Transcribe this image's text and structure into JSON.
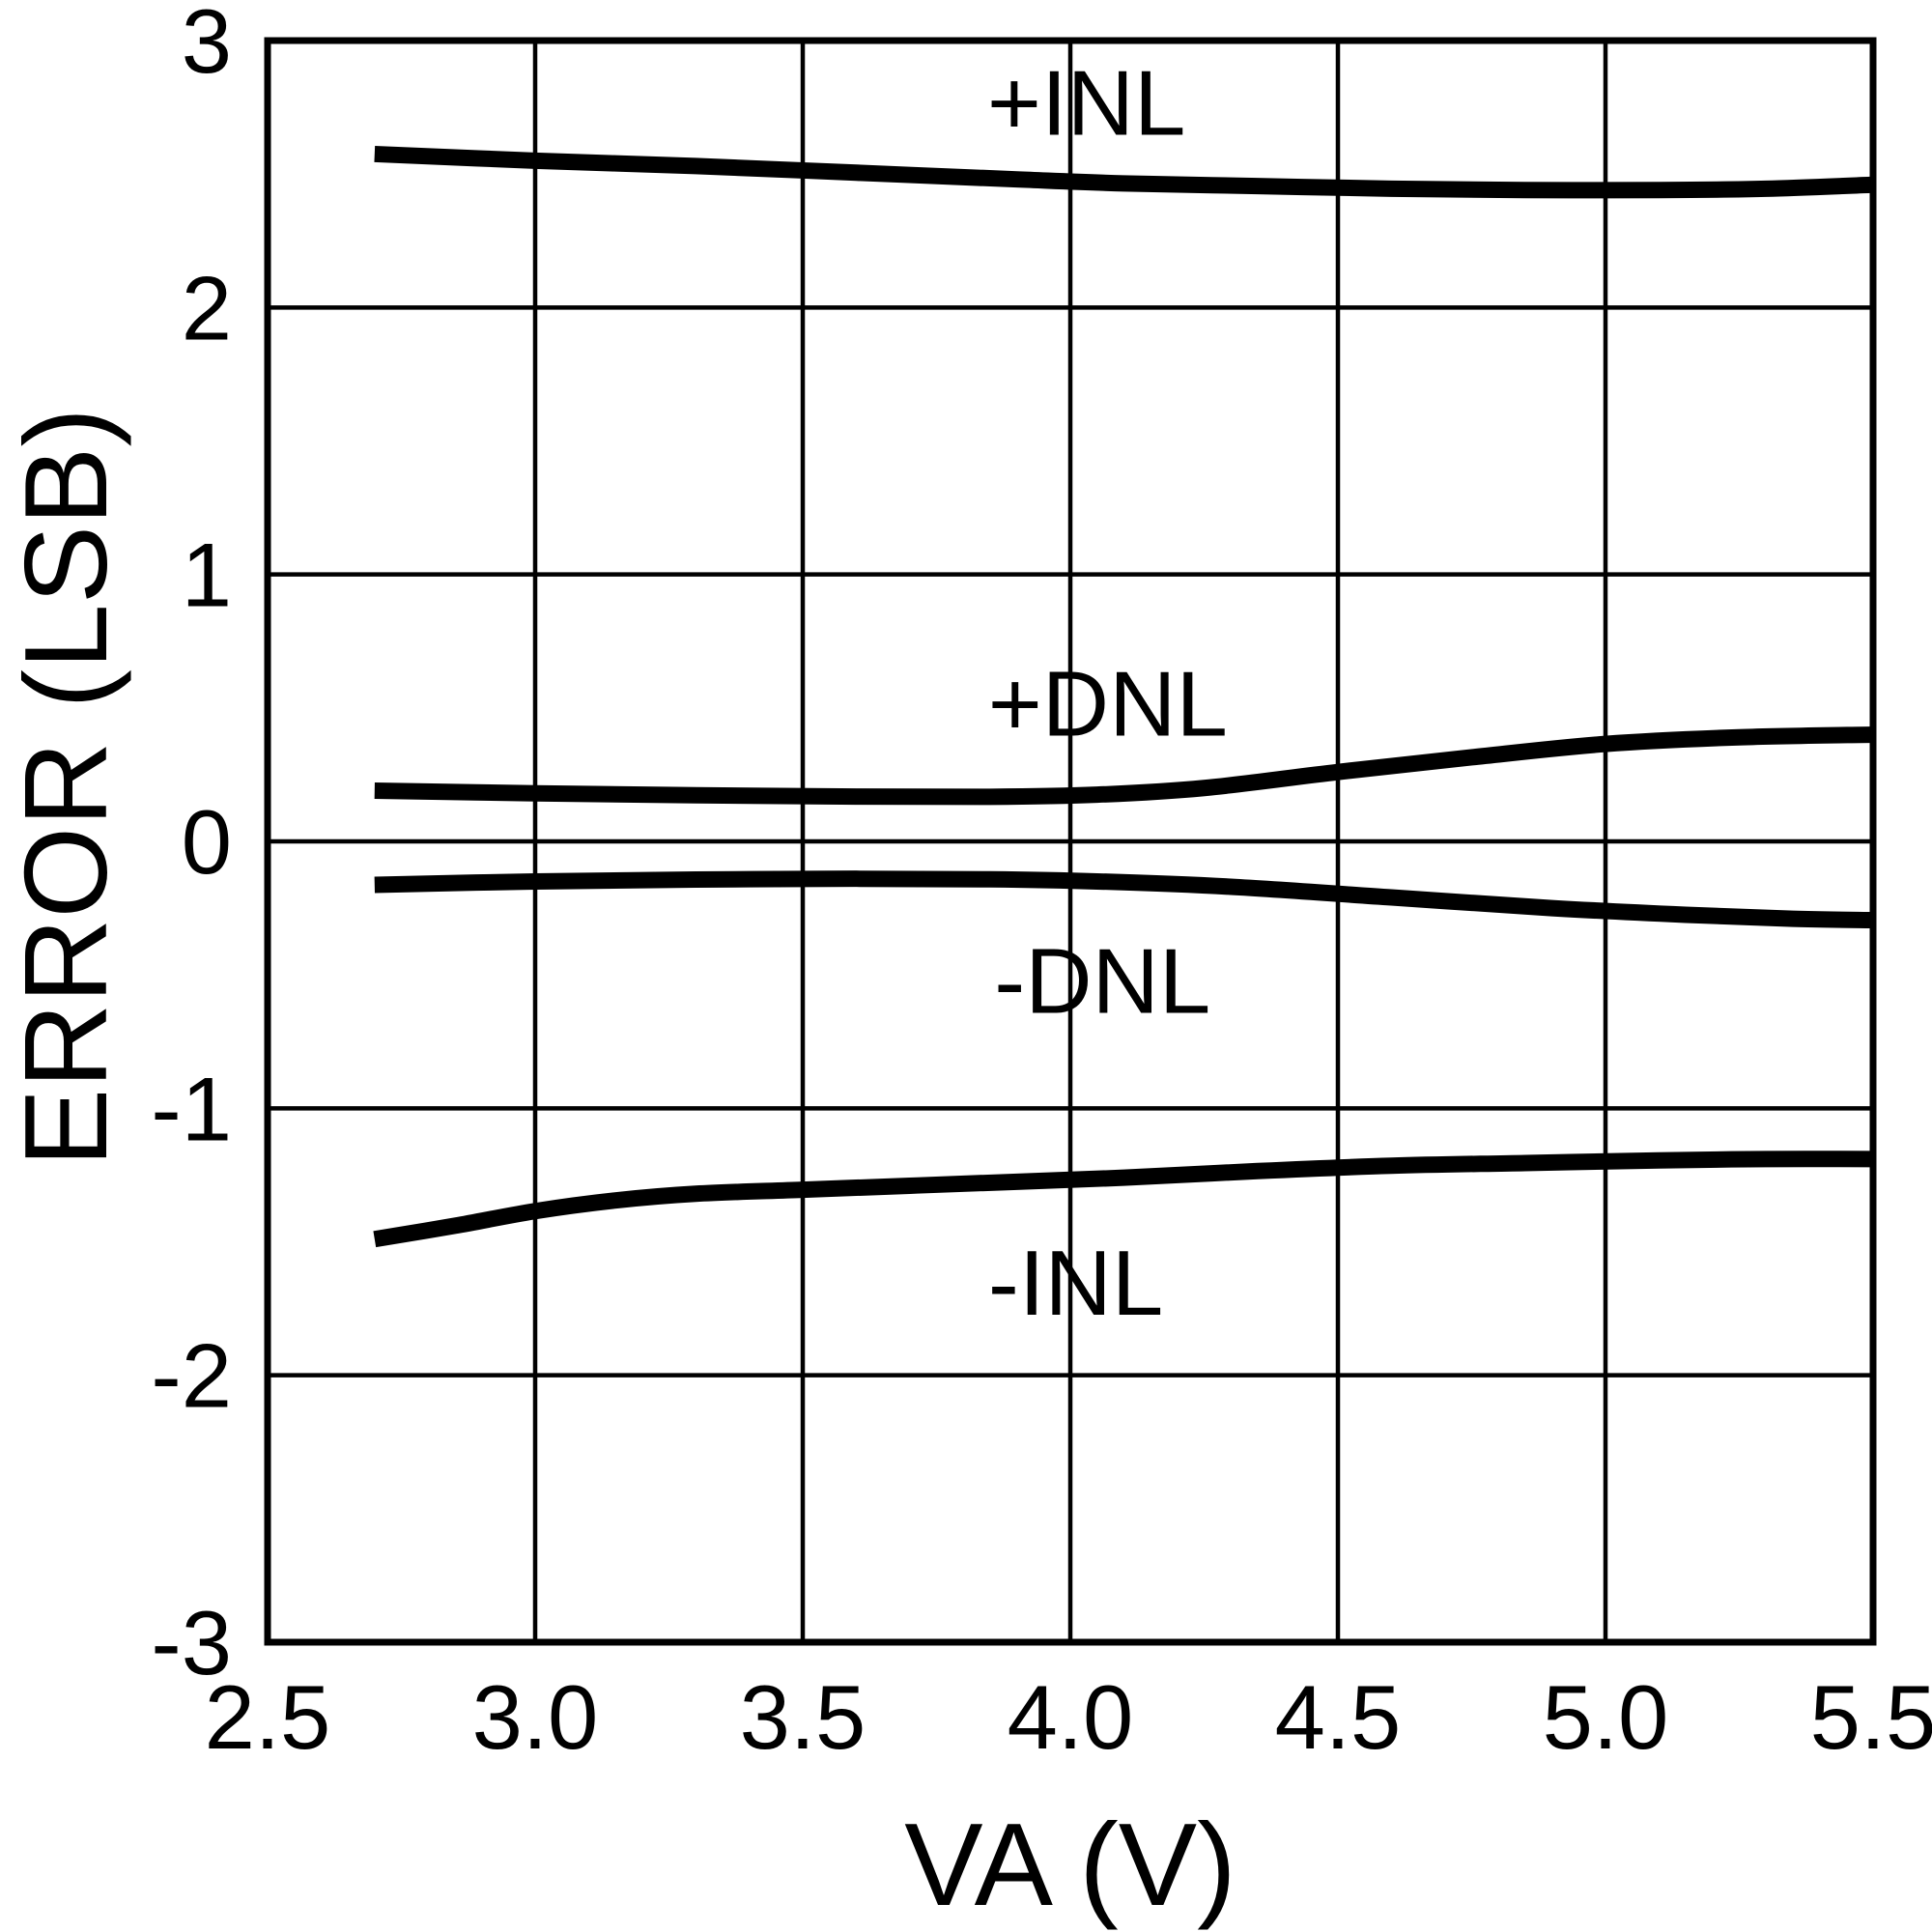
{
  "page": {
    "background": "#ffffff",
    "ink_color": "#000000"
  },
  "chart_data": {
    "type": "line",
    "title": "",
    "xlabel": "VA (V)",
    "ylabel": "ERROR (LSB)",
    "xlim": [
      2.5,
      5.5
    ],
    "ylim": [
      -3,
      3
    ],
    "grid": true,
    "legend_position": "inline-curve-labels",
    "line_color": "#000000",
    "x_ticks": {
      "values": [
        2.5,
        3.0,
        3.5,
        4.0,
        4.5,
        5.0,
        5.5
      ],
      "labels": [
        "2.5",
        "3.0",
        "3.5",
        "4.0",
        "4.5",
        "5.0",
        "5.5"
      ]
    },
    "y_ticks": {
      "values": [
        3,
        2,
        1,
        0,
        -1,
        -2,
        -3
      ],
      "labels": [
        "3",
        "2",
        "1",
        "0",
        "-1",
        "-2",
        "-3"
      ]
    },
    "series": [
      {
        "name": "+INL",
        "label": "+INL",
        "label_pos": {
          "x": 4.03,
          "y": 2.77
        },
        "points": [
          [
            2.7,
            2.575
          ],
          [
            3.0,
            2.55
          ],
          [
            3.3,
            2.53
          ],
          [
            3.6,
            2.505
          ],
          [
            3.9,
            2.48
          ],
          [
            4.1,
            2.465
          ],
          [
            4.35,
            2.455
          ],
          [
            4.6,
            2.445
          ],
          [
            4.85,
            2.44
          ],
          [
            5.1,
            2.44
          ],
          [
            5.3,
            2.445
          ],
          [
            5.5,
            2.46
          ]
        ]
      },
      {
        "name": "+DNL",
        "label": "+DNL",
        "label_pos": {
          "x": 4.07,
          "y": 0.52
        },
        "points": [
          [
            2.7,
            0.19
          ],
          [
            3.0,
            0.18
          ],
          [
            3.3,
            0.173
          ],
          [
            3.6,
            0.168
          ],
          [
            3.85,
            0.167
          ],
          [
            4.05,
            0.175
          ],
          [
            4.25,
            0.2
          ],
          [
            4.5,
            0.26
          ],
          [
            4.75,
            0.315
          ],
          [
            5.0,
            0.365
          ],
          [
            5.25,
            0.39
          ],
          [
            5.5,
            0.4
          ]
        ]
      },
      {
        "name": "-DNL",
        "label": "-DNL",
        "label_pos": {
          "x": 4.06,
          "y": -0.52
        },
        "points": [
          [
            2.7,
            -0.163
          ],
          [
            3.0,
            -0.15
          ],
          [
            3.3,
            -0.143
          ],
          [
            3.6,
            -0.14
          ],
          [
            3.85,
            -0.142
          ],
          [
            4.05,
            -0.15
          ],
          [
            4.3,
            -0.17
          ],
          [
            4.6,
            -0.21
          ],
          [
            4.9,
            -0.25
          ],
          [
            5.15,
            -0.275
          ],
          [
            5.35,
            -0.29
          ],
          [
            5.5,
            -0.295
          ]
        ]
      },
      {
        "name": "-INL",
        "label": "-INL",
        "label_pos": {
          "x": 4.01,
          "y": -1.65
        },
        "points": [
          [
            2.7,
            -1.49
          ],
          [
            2.85,
            -1.44
          ],
          [
            3.0,
            -1.385
          ],
          [
            3.15,
            -1.345
          ],
          [
            3.3,
            -1.32
          ],
          [
            3.5,
            -1.305
          ],
          [
            3.7,
            -1.29
          ],
          [
            3.9,
            -1.275
          ],
          [
            4.1,
            -1.26
          ],
          [
            4.35,
            -1.235
          ],
          [
            4.6,
            -1.215
          ],
          [
            4.85,
            -1.205
          ],
          [
            5.1,
            -1.195
          ],
          [
            5.3,
            -1.19
          ],
          [
            5.5,
            -1.19
          ]
        ]
      }
    ]
  }
}
